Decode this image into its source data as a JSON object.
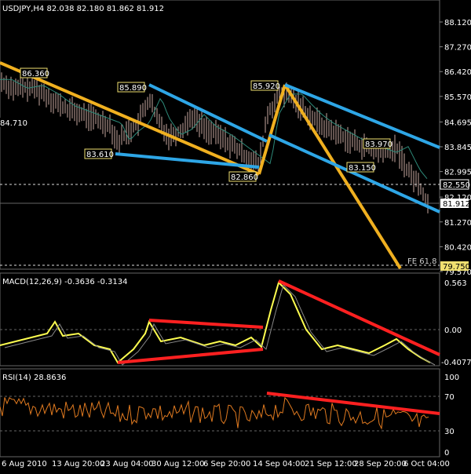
{
  "main": {
    "symbol_line": "USDJPY,H4  82.038 82.180 81.862 81.912",
    "price_ticks": [
      "88.120",
      "87.270",
      "86.420",
      "85.570",
      "84.695",
      "83.845",
      "82.995",
      "82.120",
      "81.270",
      "80.420",
      "79.570"
    ],
    "price_tick_values": [
      88.12,
      87.27,
      86.42,
      85.57,
      84.695,
      83.845,
      82.995,
      82.12,
      81.27,
      80.42,
      79.57
    ],
    "current_price": "81.912",
    "level_82550": "82.550",
    "level_79750": "79.750",
    "fe_label": "FE 61.8",
    "pivots": [
      {
        "label": "86.360",
        "x": 0
      },
      {
        "label": "84.710",
        "x": 0
      },
      {
        "label": "85.890",
        "x": 0
      },
      {
        "label": "83.610",
        "x": 0
      },
      {
        "label": "82.860",
        "x": 0
      },
      {
        "label": "85.920",
        "x": 0
      },
      {
        "label": "83.970",
        "x": 0
      },
      {
        "label": "83.150",
        "x": 0
      }
    ]
  },
  "macd": {
    "title": "MACD(12,26,9) -0.3636 -0.3134",
    "ticks": [
      "0.563",
      "0.00",
      "-0.4077"
    ]
  },
  "rsi": {
    "title": "RSI(14) 28.8636",
    "ticks": [
      "100",
      "70",
      "30",
      "0"
    ]
  },
  "time_axis": {
    "labels": [
      "6 Aug 2010",
      "13 Aug 20:00",
      "23 Aug 04:00",
      "30 Aug 12:00",
      "6 Sep 20:00",
      "14 Sep 04:00",
      "21 Sep 12:00",
      "28 Sep 20:00",
      "6 Oct 04:00"
    ]
  },
  "colors": {
    "background": "#000000",
    "candle": "#c9a9a0",
    "ma_line": "#2e8b7a",
    "fib_line": "#f0b020",
    "channel_line": "#2ea6e6",
    "macd_line": "#ffff50",
    "signal_line": "#888888",
    "rsi_line": "#e07a20",
    "trend_red": "#ff2020",
    "grid_dash": "#aaaaaa"
  }
}
